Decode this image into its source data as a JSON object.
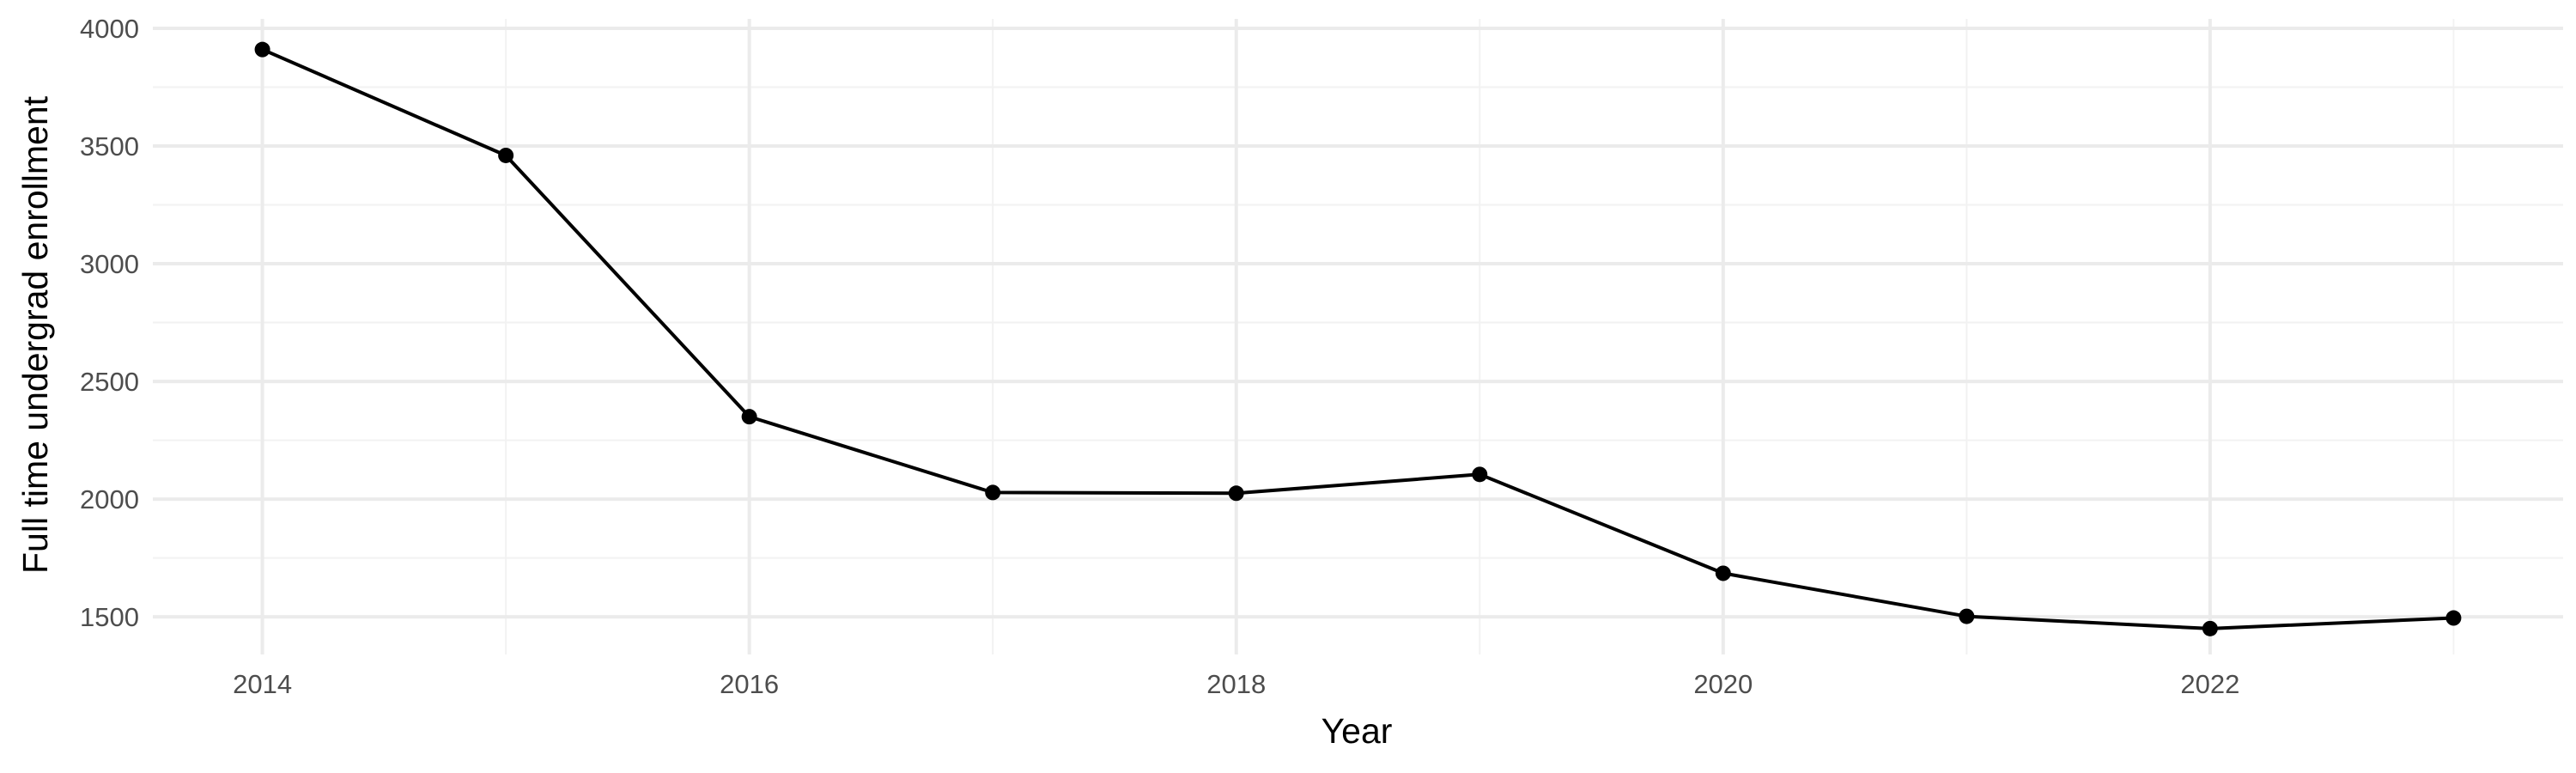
{
  "chart_data": {
    "type": "line",
    "title": "",
    "xlabel": "Year",
    "ylabel": "Full time undergrad enrollment",
    "x": [
      2014,
      2015,
      2016,
      2017,
      2018,
      2019,
      2020,
      2021,
      2022,
      2023
    ],
    "series": [
      {
        "values": [
          3910,
          3460,
          2350,
          2028,
          2025,
          2105,
          1685,
          1502,
          1450,
          1495
        ]
      }
    ],
    "xlim": [
      2013.55,
      2023.45
    ],
    "ylim": [
      1340,
      4040
    ],
    "x_major_ticks": [
      2014,
      2016,
      2018,
      2020,
      2022
    ],
    "x_minor_ticks": [
      2015,
      2017,
      2019,
      2021,
      2023
    ],
    "x_tick_labels": [
      "2014",
      "2016",
      "2018",
      "2020",
      "2022"
    ],
    "y_major_ticks": [
      1500,
      2000,
      2500,
      3000,
      3500,
      4000
    ],
    "y_minor_ticks": [
      1750,
      2250,
      2750,
      3250,
      3750
    ],
    "y_tick_labels": [
      "1500",
      "2000",
      "2500",
      "3000",
      "3500",
      "4000"
    ],
    "grid": true,
    "legend": "none",
    "colors": {
      "line": "#000000",
      "point": "#000000",
      "grid_major": "#ebebeb",
      "grid_minor": "#f2f2f2",
      "tick_text": "#4d4d4d",
      "title_text": "#000000"
    }
  }
}
